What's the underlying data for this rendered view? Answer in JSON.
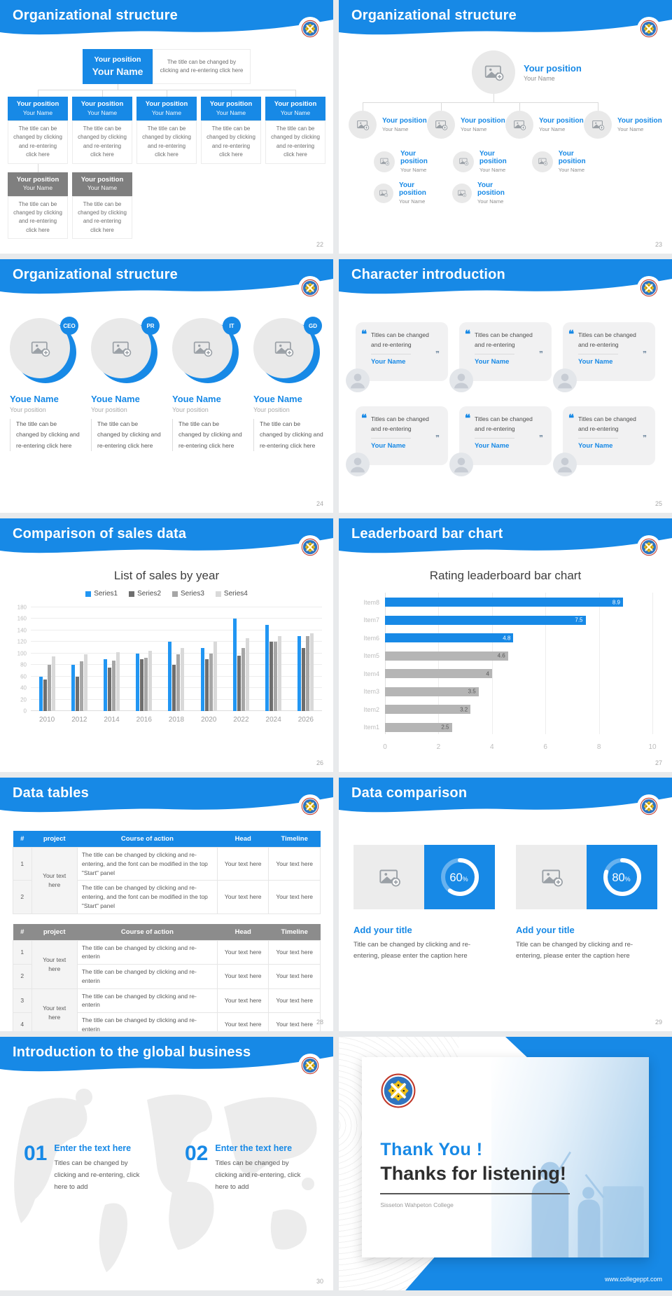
{
  "page_bg": "#e8eaec",
  "accent": "#1789e6",
  "percent_sign": "%",
  "slides": [
    {
      "title": "Organizational structure",
      "page": "22",
      "top": {
        "position": "Your position",
        "name": "Your Name",
        "caption": "The title can be changed by clicking and re-entering click here"
      },
      "caption": "The title can be changed by clicking and re-entering click here",
      "level2": [
        {
          "position": "Your position",
          "name": "Your Name"
        },
        {
          "position": "Your position",
          "name": "Your Name"
        },
        {
          "position": "Your position",
          "name": "Your Name"
        },
        {
          "position": "Your position",
          "name": "Your Name"
        },
        {
          "position": "Your position",
          "name": "Your Name"
        }
      ],
      "level3": [
        {
          "position": "Your position",
          "name": "Your Name"
        },
        {
          "position": "Your position",
          "name": "Your Name"
        }
      ]
    },
    {
      "title": "Organizational structure",
      "page": "23",
      "root": {
        "position": "Your position",
        "name": "Your Name"
      },
      "level2": [
        {
          "position": "Your position",
          "name": "Your Name"
        },
        {
          "position": "Your position",
          "name": "Your Name"
        },
        {
          "position": "Your position",
          "name": "Your Name"
        },
        {
          "position": "Your position",
          "name": "Your Name"
        }
      ],
      "level3": [
        {
          "position": "Your position",
          "name": "Your Name"
        },
        {
          "position": "Your position",
          "name": "Your Name"
        },
        {
          "position": "Your position",
          "name": "Your Name"
        }
      ],
      "level4": [
        {
          "position": "Your position",
          "name": "Your Name"
        },
        {
          "position": "Your position",
          "name": "Your Name"
        }
      ]
    },
    {
      "title": "Organizational structure",
      "page": "24",
      "members": [
        {
          "badge": "CEO",
          "name": "Youe Name",
          "position": "Your position",
          "caption": "The title can be changed by clicking and re-entering click here"
        },
        {
          "badge": "PR",
          "name": "Youe Name",
          "position": "Your position",
          "caption": "The title can be changed by clicking and re-entering click here"
        },
        {
          "badge": "IT",
          "name": "Youe Name",
          "position": "Your position",
          "caption": "The title can be changed by clicking and re-entering click here"
        },
        {
          "badge": "GD",
          "name": "Youe Name",
          "position": "Your position",
          "caption": "The title can be changed by clicking and re-entering click here"
        }
      ]
    },
    {
      "title": "Character introduction",
      "page": "25",
      "cards": [
        {
          "quote": "Titles can be changed and re-entering",
          "name": "Your Name"
        },
        {
          "quote": "Titles can be changed and re-entering",
          "name": "Your Name"
        },
        {
          "quote": "Titles can be changed and re-entering",
          "name": "Your Name"
        },
        {
          "quote": "Titles can be changed and re-entering",
          "name": "Your Name"
        },
        {
          "quote": "Titles can be changed and re-entering",
          "name": "Your Name"
        },
        {
          "quote": "Titles can be changed and re-entering",
          "name": "Your Name"
        }
      ]
    },
    {
      "title": "Comparison of sales data",
      "page": "26",
      "chart_data": {
        "type": "bar",
        "title": "List of sales by year",
        "categories": [
          "2010",
          "2012",
          "2014",
          "2016",
          "2018",
          "2020",
          "2022",
          "2024",
          "2026"
        ],
        "series": [
          {
            "name": "Series1",
            "color": "#2196f3",
            "values": [
              60,
              80,
              90,
              100,
              120,
              110,
              160,
              150,
              130
            ]
          },
          {
            "name": "Series2",
            "color": "#6e6e6e",
            "values": [
              55,
              60,
              75,
              90,
              80,
              90,
              96,
              120,
              110
            ]
          },
          {
            "name": "Series3",
            "color": "#a6a6a6",
            "values": [
              80,
              86,
              88,
              92,
              98,
              100,
              110,
              120,
              130
            ]
          },
          {
            "name": "Series4",
            "color": "#d9d9d9",
            "values": [
              95,
              99,
              102,
              105,
              110,
              120,
              126,
              130,
              135
            ]
          }
        ],
        "ylim": [
          0,
          180
        ],
        "ytick": 20,
        "grid": true,
        "legend_position": "top"
      }
    },
    {
      "title": "Leaderboard bar chart",
      "page": "27",
      "chart_data": {
        "type": "bar-horizontal",
        "title": "Rating leaderboard bar chart",
        "categories": [
          "Item8",
          "Item7",
          "Item6",
          "Item5",
          "Item4",
          "Item3",
          "Item2",
          "Item1"
        ],
        "values": [
          8.9,
          7.5,
          4.8,
          4.6,
          4,
          3.5,
          3.2,
          2.5
        ],
        "colors": [
          "#1789e6",
          "#1789e6",
          "#1789e6",
          "#b5b5b5",
          "#b5b5b5",
          "#b5b5b5",
          "#b5b5b5",
          "#b5b5b5"
        ],
        "xlim": [
          0,
          10
        ],
        "xticks": [
          0,
          2,
          4,
          6,
          8,
          10
        ],
        "grid": true
      }
    },
    {
      "title": "Data tables",
      "page": "28",
      "tables": [
        {
          "columns": [
            "#",
            "project",
            "Course of action",
            "Head",
            "Timeline"
          ],
          "rows": [
            {
              "num": "1",
              "project": "Your text here",
              "course": "The title can be changed by clicking and re-entering, and the font can be modified in the top \"Start\" panel",
              "head": "Your text here",
              "timeline": "Your text here"
            },
            {
              "num": "2",
              "course": "The title can be changed by clicking and re-entering, and the font can be modified in the top \"Start\" panel",
              "head": "Your text here",
              "timeline": "Your text here"
            }
          ]
        },
        {
          "columns": [
            "#",
            "project",
            "Course of action",
            "Head",
            "Timeline"
          ],
          "rows": [
            {
              "num": "1",
              "project": "Your text here",
              "course": "The title can be changed by clicking and re-enterin",
              "head": "Your text here",
              "timeline": "Your text here"
            },
            {
              "num": "2",
              "course": "The title can be changed by clicking and re-enterin",
              "head": "Your text here",
              "timeline": "Your text here"
            },
            {
              "num": "3",
              "project": "Your text here",
              "course": "The title can be changed by clicking and re-enterin",
              "head": "Your text here",
              "timeline": "Your text here"
            },
            {
              "num": "4",
              "course": "The title can be changed by clicking and re-enterin",
              "head": "Your text here",
              "timeline": "Your text here"
            }
          ]
        }
      ]
    },
    {
      "title": "Data comparison",
      "page": "29",
      "items": [
        {
          "percent": "60",
          "title": "Add your title",
          "caption": "Title can be changed by clicking and re-entering, please enter the caption here"
        },
        {
          "percent": "80",
          "title": "Add your title",
          "caption": "Title can be changed by clicking and re-entering, please enter the caption here"
        }
      ]
    },
    {
      "title": "Introduction to the global business",
      "page": "30",
      "items": [
        {
          "num": "01",
          "title": "Enter the text here",
          "caption": "Titles can be changed by clicking and re-entering, click here to add"
        },
        {
          "num": "02",
          "title": "Enter the text here",
          "caption": "Titles can be changed by clicking and re-entering, click here to add"
        }
      ]
    },
    {
      "headline": "Thank You !",
      "subheadline": "Thanks for listening!",
      "org": "Sisseton Wahpeton College",
      "url": "www.collegeppt.com"
    }
  ]
}
